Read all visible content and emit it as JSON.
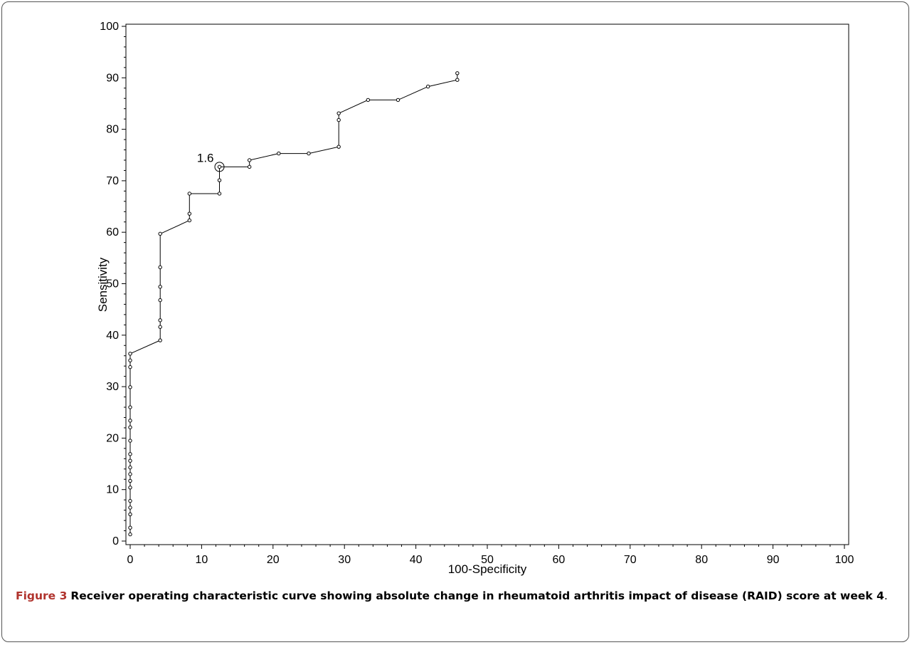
{
  "figure": {
    "caption_label": "Figure 3",
    "caption_text": "Receiver operating characteristic curve showing absolute change in rheumatoid arthritis impact of disease (RAID) score at week 4",
    "caption_end": "."
  },
  "chart_data": {
    "type": "line",
    "xlabel": "100-Specificity",
    "ylabel": "Sensitivity",
    "xlim": [
      0,
      100
    ],
    "ylim": [
      0,
      100
    ],
    "x_ticks": [
      0,
      10,
      20,
      30,
      40,
      50,
      60,
      70,
      80,
      90,
      100
    ],
    "y_ticks": [
      0,
      10,
      20,
      30,
      40,
      50,
      60,
      70,
      80,
      90,
      100
    ],
    "grid": false,
    "series": [
      {
        "markers": "open-circle",
        "points": [
          [
            0,
            1.3
          ],
          [
            0,
            2.6
          ],
          [
            0,
            5.2
          ],
          [
            0,
            6.5
          ],
          [
            0,
            7.8
          ],
          [
            0,
            10.4
          ],
          [
            0,
            11.7
          ],
          [
            0,
            13.0
          ],
          [
            0,
            14.3
          ],
          [
            0,
            15.6
          ],
          [
            0,
            16.9
          ],
          [
            0,
            19.5
          ],
          [
            0,
            22.1
          ],
          [
            0,
            23.4
          ],
          [
            0,
            26.0
          ],
          [
            0,
            29.9
          ],
          [
            0,
            33.8
          ],
          [
            0,
            35.1
          ],
          [
            0,
            36.4
          ],
          [
            4.2,
            39.0
          ],
          [
            4.2,
            41.6
          ],
          [
            4.2,
            42.9
          ],
          [
            4.2,
            46.8
          ],
          [
            4.2,
            49.4
          ],
          [
            4.2,
            53.2
          ],
          [
            4.2,
            59.7
          ],
          [
            8.3,
            62.3
          ],
          [
            8.3,
            63.6
          ],
          [
            8.3,
            67.5
          ],
          [
            12.5,
            67.5
          ],
          [
            12.5,
            70.1
          ],
          [
            12.5,
            72.7
          ],
          [
            16.7,
            72.7
          ],
          [
            16.7,
            74.0
          ],
          [
            20.8,
            75.3
          ],
          [
            25.0,
            75.3
          ],
          [
            29.2,
            76.6
          ],
          [
            29.2,
            81.8
          ],
          [
            29.2,
            83.1
          ],
          [
            33.3,
            85.7
          ],
          [
            37.5,
            85.7
          ],
          [
            41.7,
            88.3
          ],
          [
            45.8,
            89.6
          ],
          [
            45.8,
            90.9
          ]
        ]
      }
    ],
    "annotations": [
      {
        "text": "1.6",
        "x": 12.5,
        "y": 72.7
      }
    ]
  }
}
